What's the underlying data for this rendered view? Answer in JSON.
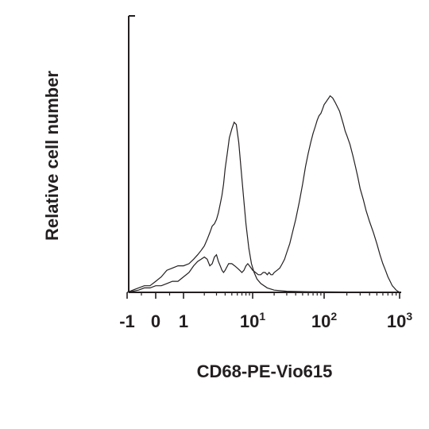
{
  "chart_data": {
    "type": "line",
    "title": "",
    "xlabel": "CD68-PE-Vio615",
    "ylabel": "Relative cell number",
    "x_scale": "biexponential",
    "x_ticks": [
      {
        "value": -1,
        "base": "-1",
        "sup": ""
      },
      {
        "value": 0,
        "base": "0",
        "sup": ""
      },
      {
        "value": 1,
        "base": "1",
        "sup": ""
      },
      {
        "value": 10,
        "base": "10",
        "sup": "1"
      },
      {
        "value": 100,
        "base": "10",
        "sup": "2"
      },
      {
        "value": 1000,
        "base": "10",
        "sup": "3"
      }
    ],
    "xlim": [
      -1,
      1000
    ],
    "ylim": [
      0,
      100
    ],
    "grid": false,
    "legend": "none",
    "series": [
      {
        "points": [
          [
            -1,
            0
          ],
          [
            -0.8,
            1
          ],
          [
            -0.6,
            2
          ],
          [
            -0.4,
            3
          ],
          [
            -0.2,
            3
          ],
          [
            0,
            5
          ],
          [
            0.2,
            7
          ],
          [
            0.4,
            10
          ],
          [
            0.6,
            11
          ],
          [
            0.8,
            12
          ],
          [
            1,
            12
          ],
          [
            1.2,
            13
          ],
          [
            1.4,
            15
          ],
          [
            1.6,
            17
          ],
          [
            1.8,
            19
          ],
          [
            2,
            21
          ],
          [
            2.2,
            24
          ],
          [
            2.4,
            27
          ],
          [
            2.6,
            30
          ],
          [
            2.8,
            31
          ],
          [
            3,
            33
          ],
          [
            3.2,
            36
          ],
          [
            3.4,
            40
          ],
          [
            3.6,
            44
          ],
          [
            3.8,
            49
          ],
          [
            4,
            56
          ],
          [
            4.3,
            63
          ],
          [
            4.6,
            70
          ],
          [
            5,
            74
          ],
          [
            5.4,
            77
          ],
          [
            5.8,
            76
          ],
          [
            6.3,
            68
          ],
          [
            6.8,
            56
          ],
          [
            7.4,
            43
          ],
          [
            8,
            31
          ],
          [
            8.8,
            20
          ],
          [
            9.6,
            13
          ],
          [
            10.5,
            9
          ],
          [
            11.5,
            6
          ],
          [
            13,
            4
          ],
          [
            16,
            2
          ],
          [
            20,
            1
          ],
          [
            30,
            0.5
          ],
          [
            60,
            0.3
          ],
          [
            100,
            0.2
          ],
          [
            300,
            0.1
          ],
          [
            600,
            0
          ],
          [
            1000,
            0
          ]
        ]
      },
      {
        "points": [
          [
            -1,
            0
          ],
          [
            -0.8,
            0.5
          ],
          [
            -0.6,
            1
          ],
          [
            -0.4,
            2
          ],
          [
            -0.2,
            2
          ],
          [
            0,
            3
          ],
          [
            0.2,
            3
          ],
          [
            0.4,
            4
          ],
          [
            0.6,
            5
          ],
          [
            0.8,
            5
          ],
          [
            1,
            7
          ],
          [
            1.2,
            9
          ],
          [
            1.4,
            12
          ],
          [
            1.6,
            14
          ],
          [
            1.8,
            15
          ],
          [
            2,
            16
          ],
          [
            2.2,
            15
          ],
          [
            2.4,
            12
          ],
          [
            2.6,
            13
          ],
          [
            2.8,
            16
          ],
          [
            3,
            17
          ],
          [
            3.2,
            14
          ],
          [
            3.4,
            12
          ],
          [
            3.6,
            10
          ],
          [
            3.8,
            9
          ],
          [
            4,
            10
          ],
          [
            4.5,
            13
          ],
          [
            5,
            13
          ],
          [
            5.5,
            12
          ],
          [
            6,
            11
          ],
          [
            6.5,
            10
          ],
          [
            7,
            9
          ],
          [
            7.5,
            10
          ],
          [
            8,
            12
          ],
          [
            8.5,
            13
          ],
          [
            9,
            12
          ],
          [
            9.5,
            11
          ],
          [
            10,
            10
          ],
          [
            11,
            9
          ],
          [
            12,
            8
          ],
          [
            13,
            8
          ],
          [
            14,
            9
          ],
          [
            15,
            9
          ],
          [
            16,
            8
          ],
          [
            17,
            9
          ],
          [
            18,
            8
          ],
          [
            19,
            8
          ],
          [
            20,
            9
          ],
          [
            22,
            10
          ],
          [
            24,
            11
          ],
          [
            26,
            13
          ],
          [
            28,
            15
          ],
          [
            30,
            18
          ],
          [
            33,
            22
          ],
          [
            36,
            27
          ],
          [
            40,
            33
          ],
          [
            45,
            41
          ],
          [
            50,
            49
          ],
          [
            55,
            57
          ],
          [
            60,
            63
          ],
          [
            65,
            68
          ],
          [
            70,
            72
          ],
          [
            75,
            75
          ],
          [
            80,
            78
          ],
          [
            85,
            80
          ],
          [
            90,
            81
          ],
          [
            95,
            83
          ],
          [
            100,
            85
          ],
          [
            105,
            86
          ],
          [
            110,
            87
          ],
          [
            115,
            88
          ],
          [
            120,
            89
          ],
          [
            130,
            88
          ],
          [
            140,
            86
          ],
          [
            150,
            84
          ],
          [
            160,
            82
          ],
          [
            170,
            79
          ],
          [
            180,
            76
          ],
          [
            190,
            73
          ],
          [
            200,
            71
          ],
          [
            220,
            67
          ],
          [
            240,
            62
          ],
          [
            260,
            57
          ],
          [
            280,
            52
          ],
          [
            300,
            47
          ],
          [
            330,
            42
          ],
          [
            360,
            37
          ],
          [
            400,
            32
          ],
          [
            450,
            27
          ],
          [
            500,
            22
          ],
          [
            550,
            17
          ],
          [
            600,
            13
          ],
          [
            650,
            10
          ],
          [
            700,
            7
          ],
          [
            750,
            5
          ],
          [
            800,
            3
          ],
          [
            850,
            2
          ],
          [
            900,
            1
          ],
          [
            1000,
            0
          ]
        ]
      }
    ]
  }
}
